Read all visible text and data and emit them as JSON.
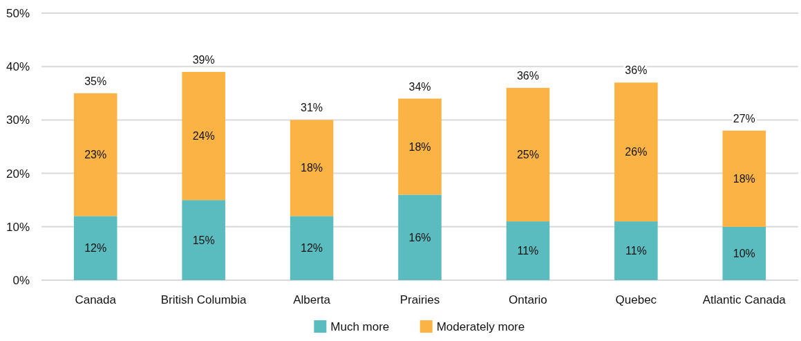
{
  "chart_data": {
    "type": "bar",
    "stacked": true,
    "categories": [
      "Canada",
      "British Columbia",
      "Alberta",
      "Prairies",
      "Ontario",
      "Quebec",
      "Atlantic Canada"
    ],
    "series": [
      {
        "name": "Much more",
        "color": "#5bbcbf",
        "values": [
          12,
          15,
          12,
          16,
          11,
          11,
          10
        ],
        "value_labels": [
          "12%",
          "15%",
          "12%",
          "16%",
          "11%",
          "11%",
          "10%"
        ]
      },
      {
        "name": "Moderately more",
        "color": "#fbb343",
        "values": [
          23,
          24,
          18,
          18,
          25,
          26,
          18
        ],
        "value_labels": [
          "23%",
          "24%",
          "18%",
          "18%",
          "25%",
          "26%",
          "18%"
        ]
      }
    ],
    "totals": [
      "35%",
      "39%",
      "31%",
      "34%",
      "36%",
      "36%",
      "27%"
    ],
    "ylim": [
      0,
      50
    ],
    "yticks": [
      {
        "value": 0,
        "label": "0%"
      },
      {
        "value": 10,
        "label": "10%"
      },
      {
        "value": 20,
        "label": "20%"
      },
      {
        "value": 30,
        "label": "30%"
      },
      {
        "value": 40,
        "label": "40%"
      },
      {
        "value": 50,
        "label": "50%"
      }
    ],
    "grid": "y",
    "legend": "bottom"
  }
}
